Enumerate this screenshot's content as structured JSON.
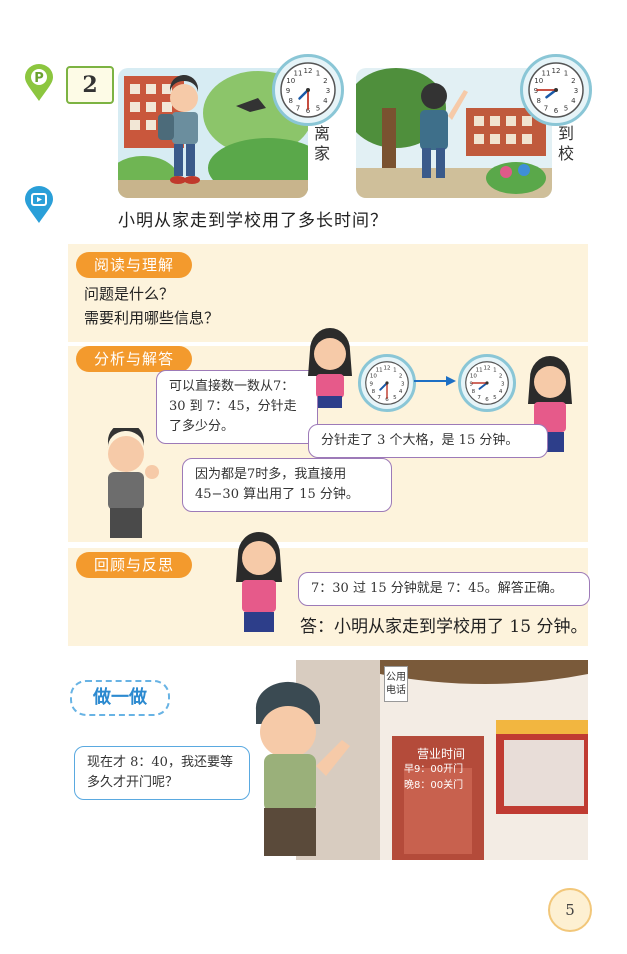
{
  "problem": {
    "number": "2",
    "question": "小明从家走到学校用了多长时间？",
    "label_leave": "离家",
    "label_arrive": "到校",
    "clock_leave": {
      "hour": 7,
      "minute": 30
    },
    "clock_arrive": {
      "hour": 7,
      "minute": 45
    }
  },
  "read": {
    "tag": "阅读与理解",
    "line1": "问题是什么？",
    "line2": "需要利用哪些信息？"
  },
  "analyze": {
    "tag": "分析与解答",
    "bubble_girl": "可以直接数一数从7：30 到 7：45，分针走了多少分。",
    "bubble_girl2": "分针走了 3 个大格，是 15 分钟。",
    "bubble_boy": "因为都是7时多，我直接用45−30 算出用了 15 分钟。"
  },
  "review": {
    "tag": "回顾与反思",
    "bubble": "7：30 过 15 分钟就是 7：45。解答正确。",
    "answer": "答：小明从家走到学校用了 15 分钟。"
  },
  "practice": {
    "tag": "做一做",
    "bubble": "现在才 8：40，我还要等多久才开门呢？",
    "phone_sign": "公用电话",
    "hours_title": "营业时间",
    "hours_open": "早9：00开门",
    "hours_close": "晚8：00关门"
  },
  "page_number": "5",
  "colors": {
    "panel": "#fdf3dc",
    "tag": "#f39a2d",
    "bubble_border": "#9d7ab8",
    "practice_accent": "#2c8ad0"
  }
}
